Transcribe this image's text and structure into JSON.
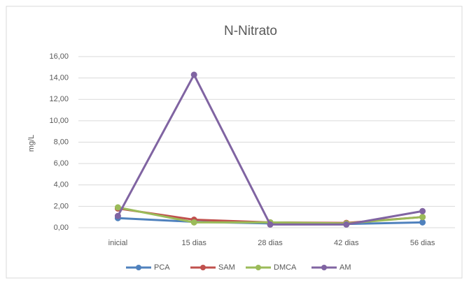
{
  "chart_data": {
    "type": "line",
    "title": "N-Nitrato",
    "y_label": "mg/L",
    "categories": [
      "inicial",
      "15 dias",
      "28 dias",
      "42 dias",
      "56 dias"
    ],
    "series": [
      {
        "name": "PCA",
        "color": "#4f81bd",
        "values": [
          0.9,
          0.55,
          0.4,
          0.35,
          0.5
        ]
      },
      {
        "name": "SAM",
        "color": "#c0504d",
        "values": [
          1.8,
          0.75,
          0.5,
          0.45,
          1.0
        ]
      },
      {
        "name": "DMCA",
        "color": "#9bbb59",
        "values": [
          1.9,
          0.5,
          0.5,
          0.4,
          1.0
        ]
      },
      {
        "name": "AM",
        "color": "#8064a2",
        "values": [
          1.1,
          14.3,
          0.3,
          0.3,
          1.55
        ]
      }
    ],
    "ylim": [
      0,
      16
    ],
    "yticks": [
      {
        "value": 0,
        "label": "0,00"
      },
      {
        "value": 2,
        "label": "2,00"
      },
      {
        "value": 4,
        "label": "4,00"
      },
      {
        "value": 6,
        "label": "6,00"
      },
      {
        "value": 8,
        "label": "8,00"
      },
      {
        "value": 10,
        "label": "10,00"
      },
      {
        "value": 12,
        "label": "12,00"
      },
      {
        "value": 14,
        "label": "14,00"
      },
      {
        "value": 16,
        "label": "16,00"
      }
    ],
    "grid": true,
    "legend": "bottom"
  }
}
